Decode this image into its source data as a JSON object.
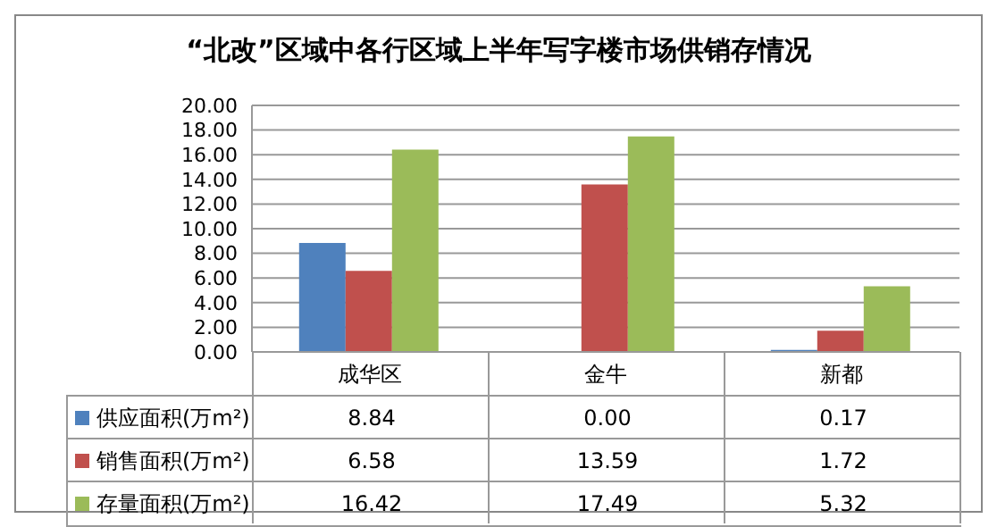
{
  "chart_data": {
    "type": "bar",
    "title": "“北改”区域中各行区域上半年写字楼市场供销存情况",
    "categories": [
      "成华区",
      "金牛",
      "新都"
    ],
    "series": [
      {
        "name": "供应面积(万m²)",
        "color": "#4f81bd",
        "values": [
          8.84,
          0,
          0.17
        ],
        "value_labels": [
          "8.84",
          "0.00",
          "0.17"
        ]
      },
      {
        "name": "销售面积(万m²)",
        "color": "#c0504d",
        "values": [
          6.58,
          13.59,
          1.72
        ],
        "value_labels": [
          "6.58",
          "13.59",
          "1.72"
        ]
      },
      {
        "name": "存量面积(万m²)",
        "color": "#9bbb59",
        "values": [
          16.42,
          17.49,
          5.32
        ],
        "value_labels": [
          "16.42",
          "17.49",
          "5.32"
        ]
      }
    ],
    "ylim": [
      0,
      20
    ],
    "yticks": [
      {
        "value": 0,
        "label": "0.00"
      },
      {
        "value": 2,
        "label": "2.00"
      },
      {
        "value": 4,
        "label": "4.00"
      },
      {
        "value": 6,
        "label": "6.00"
      },
      {
        "value": 8,
        "label": "8.00"
      },
      {
        "value": 10,
        "label": "10.00"
      },
      {
        "value": 12,
        "label": "12.00"
      },
      {
        "value": 14,
        "label": "14.00"
      },
      {
        "value": 16,
        "label": "16.00"
      },
      {
        "value": 18,
        "label": "18.00"
      },
      {
        "value": 20,
        "label": "20.00"
      }
    ],
    "grid": "y",
    "legend": "bottom"
  }
}
